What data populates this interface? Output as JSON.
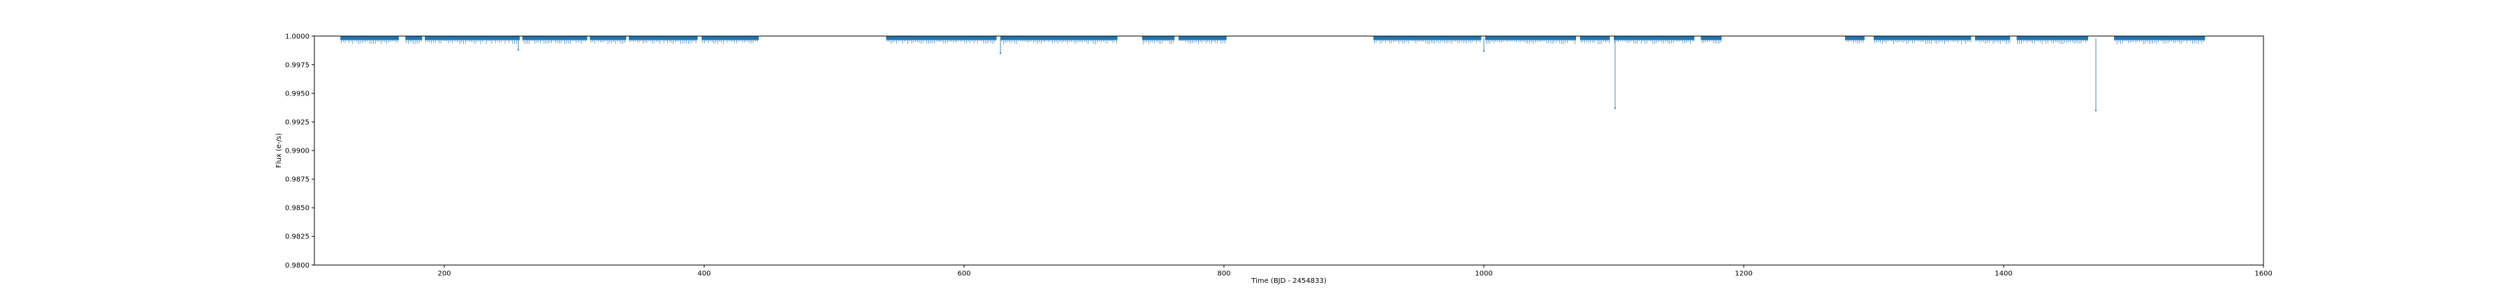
{
  "chart_data": {
    "type": "scatter",
    "title": "",
    "xlabel": "Time (BJD - 2454833)",
    "ylabel": "Flux (e-/s)",
    "xlim": [
      100,
      1600
    ],
    "ylim": [
      0.98,
      1.0
    ],
    "xticks": [
      200,
      400,
      600,
      800,
      1000,
      1200,
      1400,
      1600
    ],
    "xtick_labels": [
      "200",
      "400",
      "600",
      "800",
      "1000",
      "1200",
      "1400",
      "1600"
    ],
    "yticks": [
      0.98,
      0.9825,
      0.985,
      0.9875,
      0.99,
      0.9925,
      0.995,
      0.9975,
      1.0
    ],
    "ytick_labels": [
      "0.9800",
      "0.9825",
      "0.9850",
      "0.9875",
      "0.9900",
      "0.9925",
      "0.9950",
      "0.9975",
      "1.0000"
    ],
    "grid": false,
    "series": [
      {
        "color": "#1f77b4",
        "segments": [
          [
            120,
            165
          ],
          [
            170,
            183
          ],
          [
            185,
            258
          ],
          [
            260,
            310
          ],
          [
            312,
            340
          ],
          [
            342,
            395
          ],
          [
            398,
            442
          ],
          [
            540,
            625
          ],
          [
            628,
            718
          ],
          [
            737,
            762
          ],
          [
            765,
            802
          ],
          [
            915,
            998
          ],
          [
            1001,
            1071
          ],
          [
            1074,
            1097
          ],
          [
            1100,
            1162
          ],
          [
            1167,
            1183
          ],
          [
            1278,
            1293
          ],
          [
            1300,
            1375
          ],
          [
            1378,
            1405
          ],
          [
            1410,
            1465
          ],
          [
            1485,
            1555
          ]
        ],
        "dips": [
          [
            257,
            0.9988
          ],
          [
            628,
            0.9985
          ],
          [
            1000,
            0.9987
          ],
          [
            1101,
            0.9937
          ],
          [
            1471,
            0.9935
          ]
        ],
        "points": [
          [
            130,
            0.99992
          ],
          [
            150,
            0.99985
          ],
          [
            175,
            0.99988
          ],
          [
            210,
            0.99991
          ],
          [
            240,
            0.99983
          ],
          [
            290,
            0.9999
          ],
          [
            330,
            0.99987
          ],
          [
            370,
            0.99992
          ],
          [
            420,
            0.99986
          ],
          [
            560,
            0.9999
          ],
          [
            600,
            0.99984
          ],
          [
            660,
            0.99991
          ],
          [
            700,
            0.99987
          ],
          [
            750,
            0.99992
          ],
          [
            790,
            0.99989
          ],
          [
            940,
            0.99991
          ],
          [
            980,
            0.99985
          ],
          [
            1030,
            0.9999
          ],
          [
            1060,
            0.99988
          ],
          [
            1090,
            0.99992
          ],
          [
            1130,
            0.99986
          ],
          [
            1175,
            0.9999
          ],
          [
            1285,
            0.99991
          ],
          [
            1320,
            0.99987
          ],
          [
            1360,
            0.99992
          ],
          [
            1395,
            0.99986
          ],
          [
            1430,
            0.9999
          ],
          [
            1455,
            0.99984
          ],
          [
            1500,
            0.99991
          ],
          [
            1540,
            0.99988
          ]
        ]
      }
    ]
  }
}
